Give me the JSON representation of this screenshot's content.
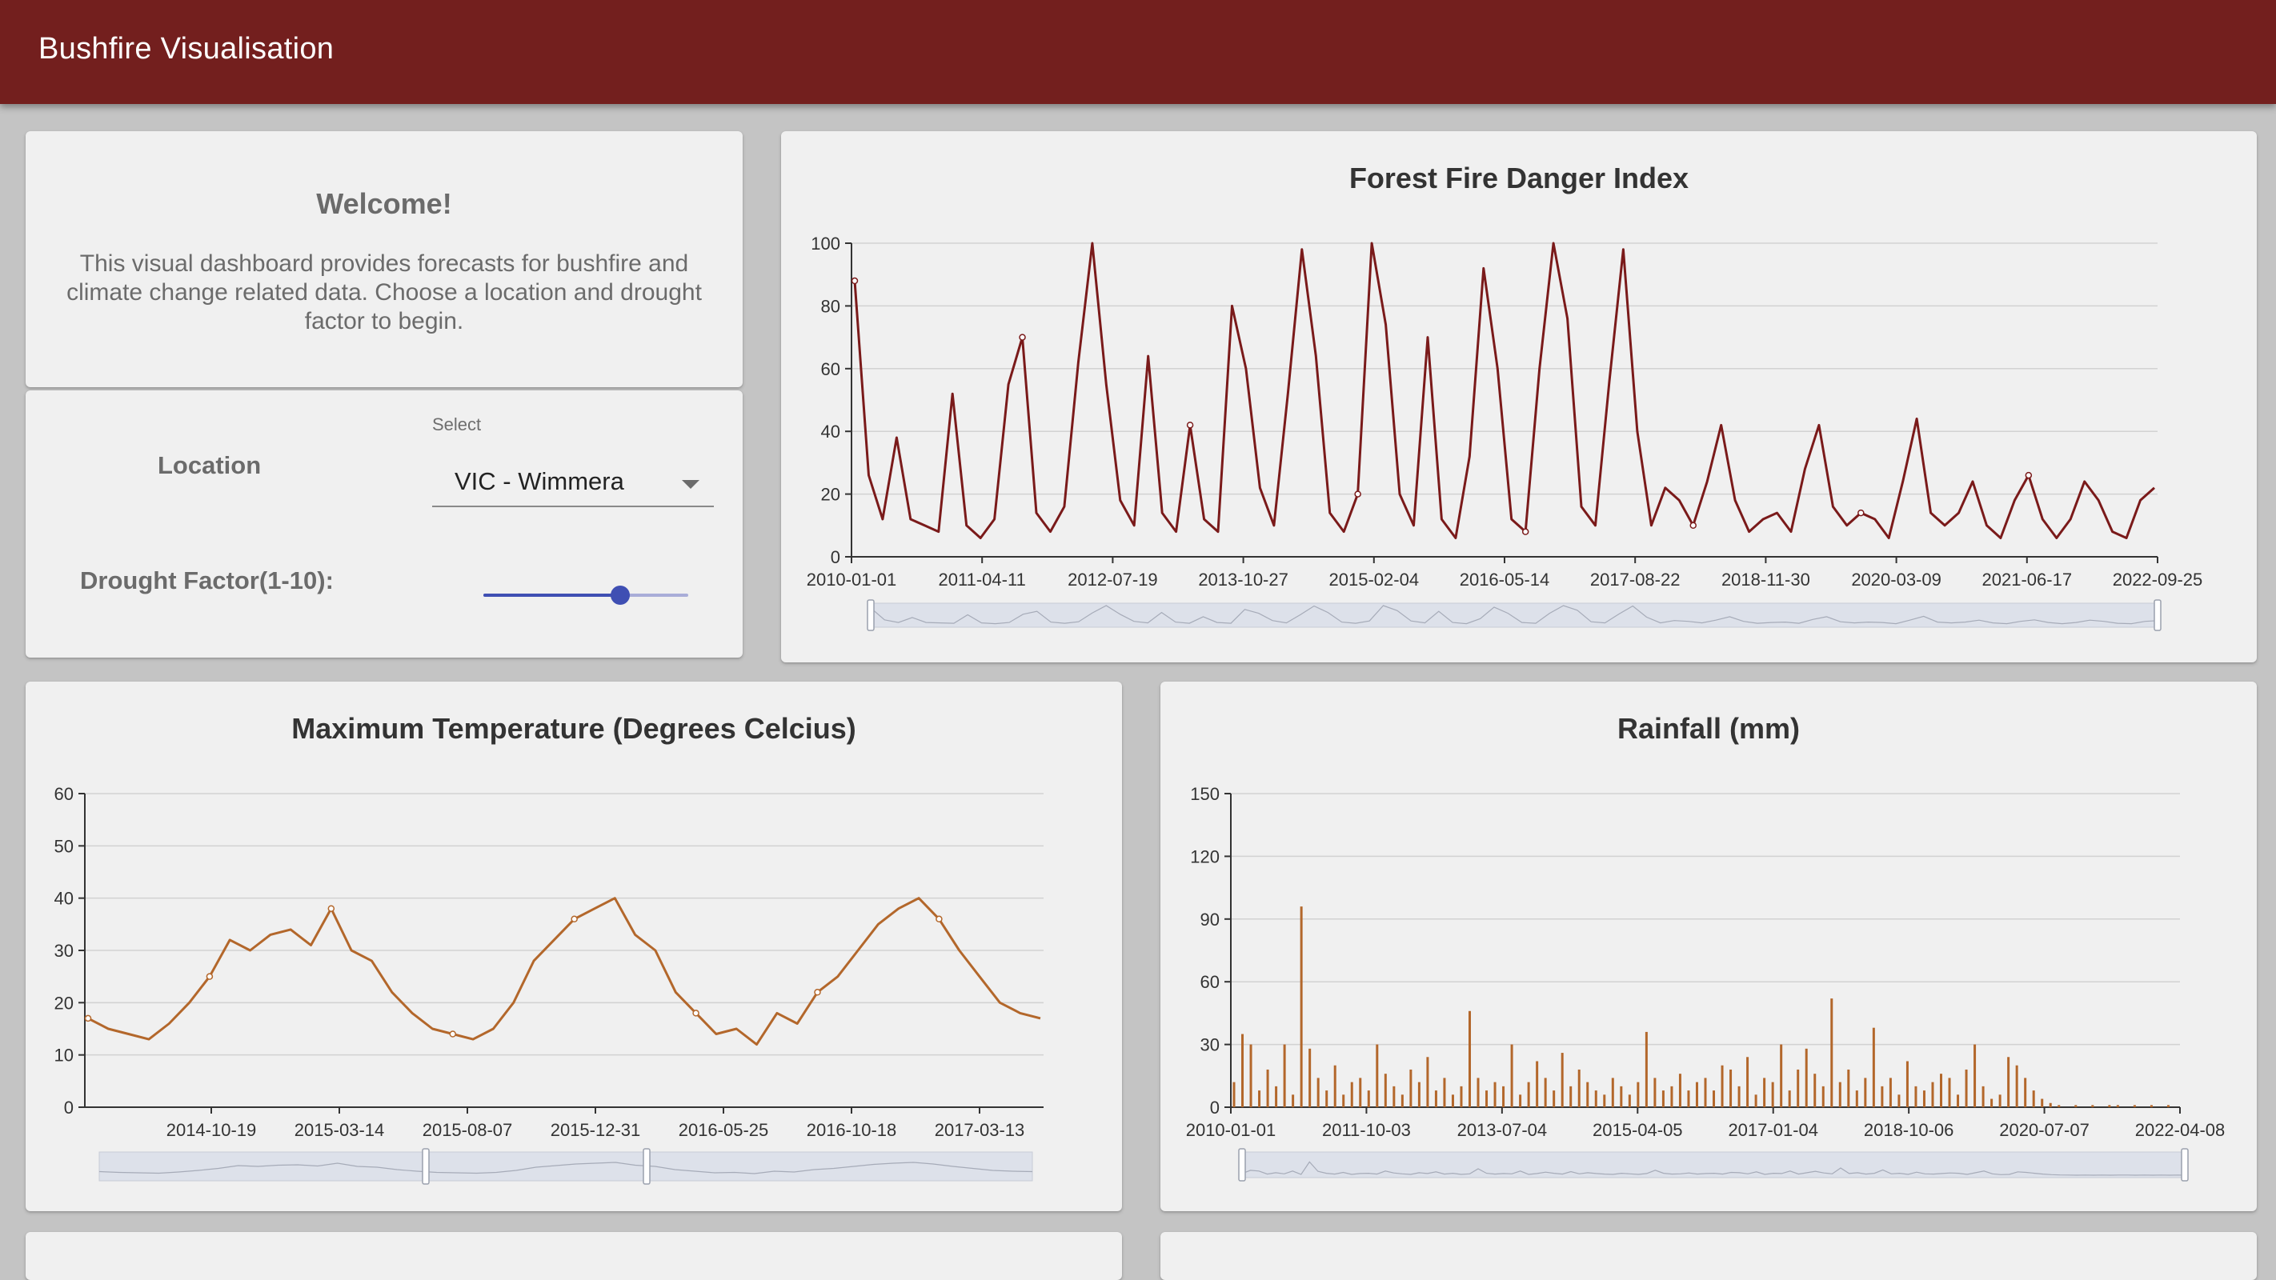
{
  "app": {
    "title": "Bushfire Visualisation"
  },
  "welcome": {
    "title": "Welcome!",
    "line1": "This visual dashboard provides forecasts for bushfire and",
    "line2": "climate change related data. Choose a location and drought",
    "line3": "factor to begin."
  },
  "controls": {
    "location_label": "Location",
    "select_caption": "Select",
    "location_value": "VIC - Wimmera",
    "drought_label": "Drought Factor(1-10):",
    "drought_value": 7,
    "drought_min": 1,
    "drought_max": 10
  },
  "chart_data": [
    {
      "id": "ffdi",
      "type": "line",
      "title": "Forest Fire Danger Index",
      "color": "#7a1a1a",
      "ylim": [
        0,
        100
      ],
      "y_ticks": [
        0,
        20,
        40,
        60,
        80,
        100
      ],
      "x_tick_labels": [
        "2010-01-01",
        "2011-04-11",
        "2012-07-19",
        "2013-10-27",
        "2015-02-04",
        "2016-05-14",
        "2017-08-22",
        "2018-11-30",
        "2020-03-09",
        "2021-06-17",
        "2022-09-25"
      ],
      "grid": true,
      "series": [
        {
          "values": [
            88,
            26,
            12,
            38,
            12,
            10,
            8,
            52,
            10,
            6,
            12,
            55,
            70,
            14,
            8,
            16,
            62,
            100,
            55,
            18,
            10,
            64,
            14,
            8,
            42,
            12,
            8,
            80,
            60,
            22,
            10,
            52,
            98,
            64,
            14,
            8,
            20,
            100,
            74,
            20,
            10,
            70,
            12,
            6,
            32,
            92,
            60,
            12,
            8,
            60,
            100,
            76,
            16,
            10,
            56,
            98,
            40,
            10,
            22,
            18,
            10,
            24,
            42,
            18,
            8,
            12,
            14,
            8,
            28,
            42,
            16,
            10,
            14,
            12,
            6,
            24,
            44,
            14,
            10,
            14,
            24,
            10,
            6,
            18,
            26,
            12,
            6,
            12,
            24,
            18,
            8,
            6,
            18,
            22
          ]
        }
      ]
    },
    {
      "id": "maxtemp",
      "type": "line",
      "title": "Maximum Temperature (Degrees Celcius)",
      "color": "#b3672b",
      "ylim": [
        0,
        60
      ],
      "y_ticks": [
        0,
        10,
        20,
        30,
        40,
        50,
        60
      ],
      "x_tick_labels": [
        "2014-10-19",
        "2015-03-14",
        "2015-08-07",
        "2015-12-31",
        "2016-05-25",
        "2016-10-18",
        "2017-03-13"
      ],
      "grid": true,
      "series": [
        {
          "values": [
            17,
            15,
            14,
            13,
            16,
            20,
            25,
            32,
            30,
            33,
            34,
            31,
            38,
            30,
            28,
            22,
            18,
            15,
            14,
            13,
            15,
            20,
            28,
            32,
            36,
            38,
            40,
            33,
            30,
            22,
            18,
            14,
            15,
            12,
            18,
            16,
            22,
            25,
            30,
            35,
            38,
            40,
            36,
            30,
            25,
            20,
            18,
            17
          ]
        }
      ]
    },
    {
      "id": "rainfall",
      "type": "bar",
      "title": "Rainfall (mm)",
      "color": "#b3672b",
      "ylim": [
        0,
        150
      ],
      "y_ticks": [
        0,
        30,
        60,
        90,
        120,
        150
      ],
      "x_tick_labels": [
        "2010-01-01",
        "2011-10-03",
        "2013-07-04",
        "2015-04-05",
        "2017-01-04",
        "2018-10-06",
        "2020-07-07",
        "2022-04-08"
      ],
      "grid": true,
      "series": [
        {
          "values": [
            12,
            35,
            30,
            8,
            18,
            10,
            30,
            6,
            96,
            28,
            14,
            8,
            20,
            6,
            12,
            14,
            8,
            30,
            16,
            10,
            6,
            18,
            12,
            24,
            8,
            14,
            6,
            10,
            46,
            14,
            8,
            12,
            10,
            30,
            6,
            12,
            22,
            14,
            8,
            26,
            10,
            18,
            12,
            8,
            6,
            14,
            10,
            6,
            12,
            36,
            14,
            8,
            10,
            16,
            8,
            12,
            14,
            8,
            20,
            18,
            10,
            24,
            6,
            14,
            12,
            30,
            8,
            18,
            28,
            16,
            10,
            52,
            12,
            18,
            8,
            14,
            38,
            10,
            14,
            6,
            22,
            10,
            8,
            12,
            16,
            14,
            6,
            18,
            30,
            10,
            4,
            6,
            24,
            20,
            14,
            8,
            4,
            2,
            1,
            0,
            1,
            0,
            1,
            0,
            1,
            1,
            0,
            1,
            0,
            1,
            0,
            1,
            0
          ]
        }
      ]
    }
  ]
}
